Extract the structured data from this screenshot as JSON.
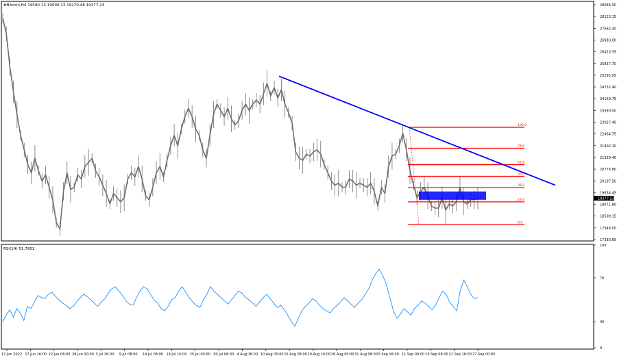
{
  "header": {
    "title": "#Bitcoin,H4  19590.13 19590.13 19270.48 19377.23"
  },
  "colors": {
    "price": "#6e6e6e",
    "trendline": "#0000ff",
    "fib": "#ff0000",
    "box": "#0000ff",
    "rsi": "#1e90ff",
    "axis": "#000000",
    "current_bg": "#000000"
  },
  "chart_data": [
    {
      "type": "line",
      "symbol": "#Bitcoin",
      "timeframe": "H4",
      "ohlc": {
        "open": 19590.13,
        "high": 19590.13,
        "low": 19270.48,
        "close": 19377.23
      },
      "current_price": 19377.23,
      "ylim": [
        17383.65,
        28686.0
      ],
      "y_ticks": [
        "28686.00",
        "28123.15",
        "27562.30",
        "26983.00",
        "26420.35",
        "25857.70",
        "25295.05",
        "24732.40",
        "24169.75",
        "23590.00",
        "23027.40",
        "22464.75",
        "21902.10",
        "21339.45",
        "20776.80",
        "20197.50",
        "19634.45",
        "19071.80",
        "18509.15",
        "17946.00",
        "17383.65"
      ],
      "x_ticks": [
        "12 Jun 2022",
        "17 Jun 16:00",
        "22 Jun 08:00",
        "28 Jun 00:00",
        "3 Jul 16:00",
        "9 Jul 08:00",
        "14 Jul 08:00",
        "19 Jul 16:00",
        "25 Jul 00:00",
        "30 Jul 08:00",
        "4 Aug 16:00",
        "10 Aug 00:00",
        "15 Aug 08:00",
        "20 Aug 16:00",
        "26 Aug 00:00",
        "31 Aug 08:00",
        "5 Sep 16:00",
        "11 Sep 00:00",
        "16 Sep 08:00",
        "21 Sep 16:00",
        "27 Sep 00:00"
      ],
      "series": [
        {
          "values": [
            28050,
            27300,
            25700,
            24500,
            23400,
            22400,
            21700,
            21000,
            20600,
            21300,
            20700,
            20200,
            20500,
            19900,
            19300,
            18200,
            17900,
            19700,
            20600,
            19800,
            19900,
            20500,
            20300,
            20900,
            21100,
            21300,
            20700,
            20400,
            20000,
            19600,
            19100,
            19600,
            19400,
            19200,
            19400,
            20300,
            20600,
            20400,
            20900,
            20300,
            19500,
            19300,
            19900,
            20600,
            20900,
            20400,
            21200,
            21900,
            22400,
            21900,
            22700,
            23300,
            23700,
            23300,
            22700,
            22400,
            21700,
            21300,
            22400,
            23400,
            23900,
            23600,
            23300,
            23700,
            23200,
            22900,
            23100,
            23600,
            23900,
            23600,
            23900,
            24100,
            23900,
            24400,
            24900,
            24300,
            24700,
            24200,
            24600,
            23900,
            23500,
            23000,
            21600,
            21300,
            21200,
            21500,
            21400,
            21600,
            21700,
            21500,
            21000,
            20600,
            20200,
            20000,
            20100,
            19900,
            19900,
            20300,
            20200,
            20000,
            20100,
            20000,
            19900,
            20100,
            19700,
            19000,
            19900,
            19600,
            20900,
            21400,
            21500,
            21900,
            22500,
            21700,
            20700,
            20000,
            19400,
            19700,
            19900,
            19500,
            19000,
            18900,
            18900,
            19400,
            18800,
            19100,
            19000,
            19200,
            19900,
            19200,
            19100,
            19300,
            19300,
            19377
          ]
        }
      ],
      "annotations": {
        "trendline": {
          "from": [
            "15 Aug",
            25250
          ],
          "to": [
            "29 Sep",
            20000
          ]
        },
        "fib_levels": [
          {
            "label": "100.0",
            "price": 22790
          },
          {
            "label": "78.6",
            "price": 21780
          },
          {
            "label": "61.8",
            "price": 20990
          },
          {
            "label": "50.0",
            "price": 20430
          },
          {
            "label": "38.2",
            "price": 19880
          },
          {
            "label": "23.6",
            "price": 19200
          },
          {
            "label": "0.0",
            "price": 18100
          }
        ],
        "support_box": {
          "price_low": 19300,
          "price_high": 19700
        }
      }
    },
    {
      "type": "line",
      "title": "RSI(14) 51.7951",
      "ylim": [
        0,
        100
      ],
      "y_ticks": [
        "100",
        "70",
        "30",
        "0"
      ],
      "series": [
        {
          "values": [
            30,
            36,
            41,
            34,
            42,
            38,
            31,
            44,
            42,
            48,
            54,
            52,
            51,
            55,
            57,
            53,
            50,
            47,
            45,
            42,
            44,
            48,
            52,
            55,
            53,
            50,
            47,
            44,
            48,
            51,
            56,
            60,
            62,
            58,
            54,
            49,
            46,
            45,
            52,
            58,
            62,
            60,
            55,
            50,
            47,
            42,
            40,
            44,
            50,
            52,
            58,
            62,
            57,
            52,
            48,
            45,
            43,
            50,
            55,
            62,
            58,
            55,
            52,
            49,
            46,
            50,
            54,
            58,
            56,
            52,
            50,
            47,
            44,
            48,
            52,
            55,
            51,
            47,
            43,
            45,
            41,
            36,
            30,
            26,
            33,
            40,
            44,
            47,
            51,
            49,
            45,
            42,
            40,
            38,
            42,
            45,
            48,
            52,
            49,
            46,
            43,
            47,
            50,
            55,
            60,
            68,
            74,
            78,
            72,
            64,
            52,
            40,
            33,
            37,
            42,
            39,
            36,
            42,
            45,
            49,
            47,
            44,
            41,
            45,
            52,
            58,
            55,
            48,
            44,
            40,
            58,
            68,
            62,
            55,
            51,
            52
          ]
        }
      ]
    }
  ]
}
